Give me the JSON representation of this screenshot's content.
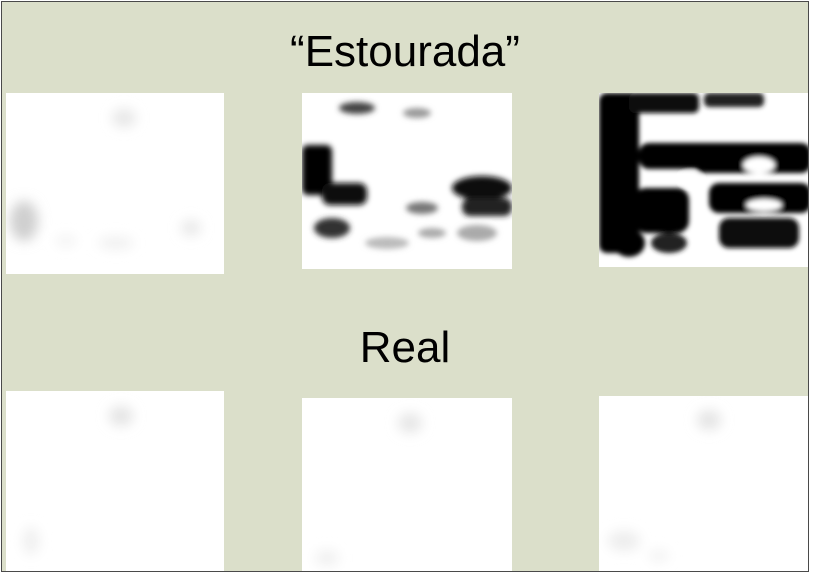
{
  "labels": {
    "top": "“Estourada”",
    "bottom": "Real"
  },
  "colors": {
    "background": "#dbdfca",
    "tile": "#ffffff",
    "ink": "#000000"
  },
  "tiles": {
    "top": [
      "faint-smudges",
      "partial-black-blobs",
      "heavy-black-blobs"
    ],
    "bottom": [
      "faint-smudges",
      "faint-smudges",
      "faint-smudges"
    ]
  }
}
